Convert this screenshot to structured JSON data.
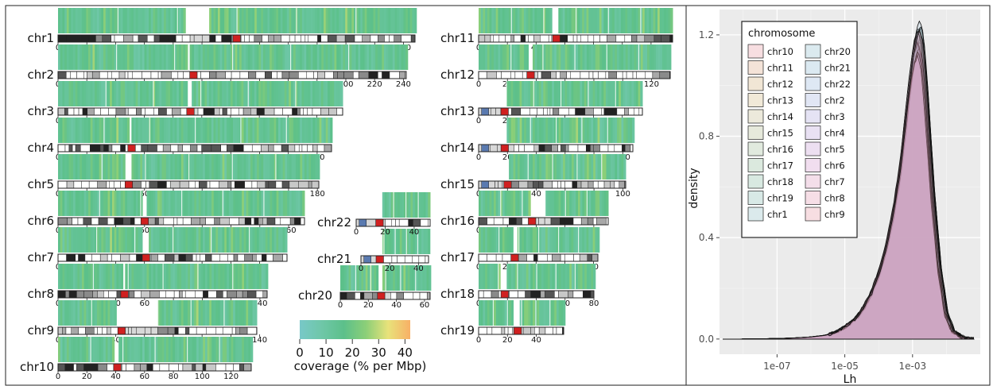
{
  "chart_data": [
    {
      "type": "heatmap",
      "subtype": "chromosome ideogram coverage",
      "unit": "Mbp",
      "chromosomes": [
        {
          "name": "chr1",
          "length": 248,
          "centromere": 123,
          "ticks": [
            0,
            20,
            40,
            60,
            80,
            100,
            120,
            140,
            160,
            180,
            200,
            220,
            240
          ],
          "gaps": [
            [
              88,
              105
            ]
          ]
        },
        {
          "name": "chr2",
          "length": 242,
          "centromere": 93,
          "ticks": [
            0,
            20,
            40,
            60,
            80,
            100,
            120,
            140,
            160,
            180,
            200,
            220,
            240
          ],
          "gaps": [
            [
              89,
              91
            ]
          ]
        },
        {
          "name": "chr3",
          "length": 198,
          "centromere": 91,
          "ticks": [
            0,
            20,
            40,
            60,
            80,
            100,
            120,
            140,
            160,
            180
          ],
          "gaps": [
            [
              90,
              92
            ]
          ]
        },
        {
          "name": "chr4",
          "length": 190,
          "centromere": 50,
          "ticks": [
            0,
            20,
            40,
            60,
            80,
            100,
            120,
            140,
            160,
            180
          ],
          "gaps": [
            [
              49,
              51
            ]
          ]
        },
        {
          "name": "chr5",
          "length": 181,
          "centromere": 48,
          "ticks": [
            0,
            20,
            40,
            60,
            80,
            100,
            120,
            140,
            160,
            180
          ],
          "gaps": [
            [
              46,
              50
            ]
          ]
        },
        {
          "name": "chr6",
          "length": 171,
          "centromere": 59,
          "ticks": [
            0,
            20,
            40,
            60,
            80,
            100,
            120,
            140,
            160
          ],
          "gaps": [
            [
              58,
              61
            ]
          ]
        },
        {
          "name": "chr7",
          "length": 159,
          "centromere": 60,
          "ticks": [
            0,
            20,
            40,
            60,
            80,
            100,
            120,
            140
          ],
          "gaps": [
            [
              58,
              62
            ]
          ]
        },
        {
          "name": "chr8",
          "length": 145,
          "centromere": 45,
          "ticks": [
            0,
            20,
            40,
            60,
            80,
            100,
            120,
            140
          ],
          "gaps": [
            [
              44,
              46
            ]
          ]
        },
        {
          "name": "chr9",
          "length": 138,
          "centromere": 43,
          "ticks": [
            0,
            20,
            40,
            60,
            80,
            100,
            120,
            140
          ],
          "gaps": [
            [
              40,
              68
            ]
          ]
        },
        {
          "name": "chr10",
          "length": 134,
          "centromere": 40,
          "ticks": [
            0,
            20,
            40,
            60,
            80,
            100,
            120
          ],
          "gaps": [
            [
              39,
              42
            ]
          ]
        },
        {
          "name": "chr11",
          "length": 135,
          "centromere": 53,
          "ticks": [
            0,
            20,
            40,
            60,
            80,
            100,
            120
          ],
          "gaps": [
            [
              51,
              55
            ]
          ]
        },
        {
          "name": "chr12",
          "length": 133,
          "centromere": 35,
          "ticks": [
            0,
            20,
            40,
            60,
            80,
            100,
            120
          ],
          "gaps": [
            [
              34,
              37
            ]
          ]
        },
        {
          "name": "chr13",
          "length": 114,
          "centromere": 17,
          "ticks": [
            0,
            20,
            40,
            60,
            80,
            100
          ],
          "gaps": [
            [
              0,
              19
            ]
          ]
        },
        {
          "name": "chr14",
          "length": 107,
          "centromere": 17,
          "ticks": [
            0,
            20,
            40,
            60,
            80,
            100
          ],
          "gaps": [
            [
              0,
              19
            ]
          ]
        },
        {
          "name": "chr15",
          "length": 102,
          "centromere": 19,
          "ticks": [
            0,
            20,
            40,
            60,
            80,
            100
          ],
          "gaps": [
            [
              0,
              20
            ]
          ]
        },
        {
          "name": "chr16",
          "length": 90,
          "centromere": 36,
          "ticks": [
            0,
            20,
            40,
            60,
            80
          ],
          "gaps": [
            [
              35,
              46
            ]
          ]
        },
        {
          "name": "chr17",
          "length": 83,
          "centromere": 24,
          "ticks": [
            0,
            20,
            40,
            60,
            80
          ],
          "gaps": [
            [
              23,
              26
            ]
          ]
        },
        {
          "name": "chr18",
          "length": 80,
          "centromere": 17,
          "ticks": [
            0,
            20,
            40,
            60,
            80
          ],
          "gaps": [
            [
              15,
              19
            ]
          ]
        },
        {
          "name": "chr19",
          "length": 59,
          "centromere": 26,
          "ticks": [
            0,
            20,
            40
          ],
          "gaps": [
            [
              24,
              28
            ]
          ]
        },
        {
          "name": "chr20",
          "length": 64,
          "centromere": 28,
          "ticks": [
            0,
            20,
            40,
            60
          ],
          "gaps": [
            [
              26,
              30
            ]
          ]
        },
        {
          "name": "chr21",
          "length": 47,
          "centromere": 12,
          "ticks": [
            0,
            20,
            40
          ],
          "gaps": [
            [
              0,
              14
            ]
          ]
        },
        {
          "name": "chr22",
          "length": 51,
          "centromere": 15,
          "ticks": [
            0,
            20,
            40
          ],
          "gaps": [
            [
              0,
              17
            ]
          ]
        }
      ],
      "colorbar": {
        "label": "coverage (% per Mbp)",
        "ticks": [
          0,
          10,
          20,
          30,
          40
        ],
        "range": [
          0,
          42
        ],
        "colors": [
          "#78c8c8",
          "#6fc7a8",
          "#5cc08a",
          "#8ccf78",
          "#e8e27a",
          "#f8b066"
        ]
      }
    },
    {
      "type": "area",
      "subtype": "density",
      "xlabel": "Lh",
      "ylabel": "density",
      "x_scale": "log10",
      "xlim": [
        2e-09,
        0.1
      ],
      "ylim": [
        -0.06,
        1.3
      ],
      "xticks": [
        "1e-07",
        "1e-05",
        "1e-03"
      ],
      "yticks": [
        "0.0",
        "0.4",
        "0.8",
        "1.2"
      ],
      "grid": true,
      "legend_title": "chromosome",
      "legend_position": "top-left",
      "series": [
        {
          "name": "chr10",
          "color": "#e8a0a8"
        },
        {
          "name": "chr11",
          "color": "#e0b090"
        },
        {
          "name": "chr12",
          "color": "#d8b888"
        },
        {
          "name": "chr13",
          "color": "#d8c090"
        },
        {
          "name": "chr14",
          "color": "#c8c098"
        },
        {
          "name": "chr15",
          "color": "#b8c098"
        },
        {
          "name": "chr16",
          "color": "#a8c4a0"
        },
        {
          "name": "chr17",
          "color": "#98c0a0"
        },
        {
          "name": "chr18",
          "color": "#90c0a8"
        },
        {
          "name": "chr19",
          "color": "#90c0b8"
        },
        {
          "name": "chr1",
          "color": "#98c4c8"
        },
        {
          "name": "chr20",
          "color": "#98c4d0"
        },
        {
          "name": "chr21",
          "color": "#98c0d8"
        },
        {
          "name": "chr22",
          "color": "#a0bce0"
        },
        {
          "name": "chr2",
          "color": "#a8b8e0"
        },
        {
          "name": "chr3",
          "color": "#b4b0e0"
        },
        {
          "name": "chr4",
          "color": "#c0aadc"
        },
        {
          "name": "chr5",
          "color": "#cca4d8"
        },
        {
          "name": "chr6",
          "color": "#d8a0d0"
        },
        {
          "name": "chr7",
          "color": "#e0a0c4"
        },
        {
          "name": "chr8",
          "color": "#e4a0b8"
        },
        {
          "name": "chr9",
          "color": "#e8a0ac"
        }
      ],
      "log10_x": [
        -8.6,
        -8,
        -7,
        -6.5,
        -6,
        -5.6,
        -5.4,
        -5.2,
        -5.0,
        -4.8,
        -4.6,
        -4.4,
        -4.2,
        -4.0,
        -3.8,
        -3.6,
        -3.4,
        -3.3,
        -3.2,
        -3.1,
        -3.0,
        -2.9,
        -2.8,
        -2.7,
        -2.6,
        -2.5,
        -2.4,
        -2.2,
        -2.0,
        -1.8,
        -1.5,
        -1.2
      ],
      "density": [
        0,
        0,
        0.002,
        0.004,
        0.008,
        0.014,
        0.02,
        0.03,
        0.045,
        0.065,
        0.09,
        0.13,
        0.18,
        0.25,
        0.34,
        0.46,
        0.62,
        0.72,
        0.84,
        0.96,
        1.07,
        1.15,
        1.19,
        1.14,
        0.98,
        0.78,
        0.58,
        0.28,
        0.1,
        0.03,
        0.005,
        0
      ]
    }
  ]
}
